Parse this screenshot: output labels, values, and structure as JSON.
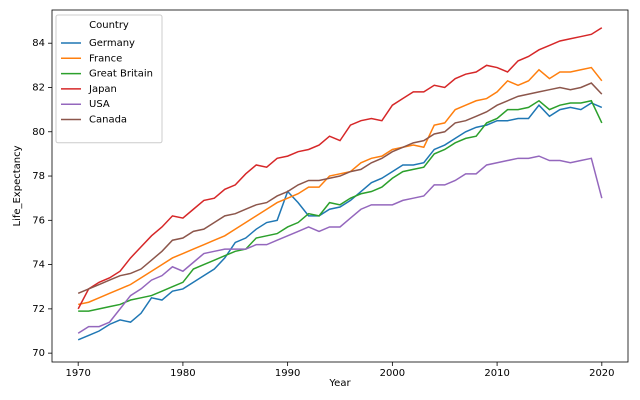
{
  "chart_data": {
    "type": "line",
    "xlabel": "Year",
    "ylabel": "Life_Expectancy",
    "legend_title": "Country",
    "legend": "upper left",
    "grid": false,
    "x": [
      1970,
      1971,
      1972,
      1973,
      1974,
      1975,
      1976,
      1977,
      1978,
      1979,
      1980,
      1981,
      1982,
      1983,
      1984,
      1985,
      1986,
      1987,
      1988,
      1989,
      1990,
      1991,
      1992,
      1993,
      1994,
      1995,
      1996,
      1997,
      1998,
      1999,
      2000,
      2001,
      2002,
      2003,
      2004,
      2005,
      2006,
      2007,
      2008,
      2009,
      2010,
      2011,
      2012,
      2013,
      2014,
      2015,
      2016,
      2017,
      2018,
      2019,
      2020
    ],
    "xlim": [
      1967.5,
      2022.5
    ],
    "xticks": [
      1970,
      1980,
      1990,
      2000,
      2010,
      2020
    ],
    "ylim": [
      69.6,
      85.5
    ],
    "yticks": [
      70,
      72,
      74,
      76,
      78,
      80,
      82,
      84
    ],
    "series": [
      {
        "name": "Germany",
        "color": "#1f77b4",
        "values": [
          70.6,
          70.8,
          71.0,
          71.3,
          71.5,
          71.4,
          71.8,
          72.5,
          72.4,
          72.8,
          72.9,
          73.2,
          73.5,
          73.8,
          74.3,
          75.0,
          75.2,
          75.6,
          75.9,
          76.0,
          77.3,
          76.8,
          76.2,
          76.2,
          76.5,
          76.6,
          76.9,
          77.3,
          77.7,
          77.9,
          78.2,
          78.5,
          78.5,
          78.6,
          79.2,
          79.4,
          79.7,
          80.0,
          80.2,
          80.3,
          80.5,
          80.5,
          80.6,
          80.6,
          81.2,
          80.7,
          81.0,
          81.1,
          81.0,
          81.3,
          81.1
        ]
      },
      {
        "name": "France",
        "color": "#ff7f0e",
        "values": [
          72.2,
          72.3,
          72.5,
          72.7,
          72.9,
          73.1,
          73.4,
          73.7,
          74.0,
          74.3,
          74.5,
          74.7,
          74.9,
          75.1,
          75.3,
          75.6,
          75.9,
          76.2,
          76.5,
          76.8,
          77.0,
          77.2,
          77.5,
          77.5,
          78.0,
          78.1,
          78.2,
          78.6,
          78.8,
          78.9,
          79.2,
          79.3,
          79.4,
          79.3,
          80.3,
          80.4,
          81.0,
          81.2,
          81.4,
          81.5,
          81.8,
          82.3,
          82.1,
          82.3,
          82.8,
          82.4,
          82.7,
          82.7,
          82.8,
          82.9,
          82.3
        ]
      },
      {
        "name": "Great Britain",
        "color": "#2ca02c",
        "values": [
          71.9,
          71.9,
          72.0,
          72.1,
          72.2,
          72.4,
          72.5,
          72.6,
          72.8,
          73.0,
          73.2,
          73.8,
          74.0,
          74.2,
          74.4,
          74.6,
          74.7,
          75.2,
          75.3,
          75.4,
          75.7,
          75.9,
          76.3,
          76.2,
          76.8,
          76.7,
          77.0,
          77.2,
          77.3,
          77.5,
          77.9,
          78.2,
          78.3,
          78.4,
          79.0,
          79.2,
          79.5,
          79.7,
          79.8,
          80.4,
          80.6,
          81.0,
          81.0,
          81.1,
          81.4,
          81.0,
          81.2,
          81.3,
          81.3,
          81.4,
          80.4
        ]
      },
      {
        "name": "Japan",
        "color": "#d62728",
        "values": [
          72.0,
          72.9,
          73.2,
          73.4,
          73.7,
          74.3,
          74.8,
          75.3,
          75.7,
          76.2,
          76.1,
          76.5,
          76.9,
          77.0,
          77.4,
          77.6,
          78.1,
          78.5,
          78.4,
          78.8,
          78.9,
          79.1,
          79.2,
          79.4,
          79.8,
          79.6,
          80.3,
          80.5,
          80.6,
          80.5,
          81.2,
          81.5,
          81.8,
          81.8,
          82.1,
          82.0,
          82.4,
          82.6,
          82.7,
          83.0,
          82.9,
          82.7,
          83.2,
          83.4,
          83.7,
          83.9,
          84.1,
          84.2,
          84.3,
          84.4,
          84.7
        ]
      },
      {
        "name": "USA",
        "color": "#9467bd",
        "values": [
          70.9,
          71.2,
          71.2,
          71.4,
          72.0,
          72.6,
          72.9,
          73.3,
          73.5,
          73.9,
          73.7,
          74.1,
          74.5,
          74.6,
          74.7,
          74.7,
          74.7,
          74.9,
          74.9,
          75.1,
          75.3,
          75.5,
          75.7,
          75.5,
          75.7,
          75.7,
          76.1,
          76.5,
          76.7,
          76.7,
          76.7,
          76.9,
          77.0,
          77.1,
          77.6,
          77.6,
          77.8,
          78.1,
          78.1,
          78.5,
          78.6,
          78.7,
          78.8,
          78.8,
          78.9,
          78.7,
          78.7,
          78.6,
          78.7,
          78.8,
          77.0
        ]
      },
      {
        "name": "Canada",
        "color": "#8c564b",
        "values": [
          72.7,
          72.9,
          73.1,
          73.3,
          73.5,
          73.6,
          73.8,
          74.2,
          74.6,
          75.1,
          75.2,
          75.5,
          75.6,
          75.9,
          76.2,
          76.3,
          76.5,
          76.7,
          76.8,
          77.1,
          77.3,
          77.6,
          77.8,
          77.8,
          77.9,
          78.0,
          78.2,
          78.3,
          78.6,
          78.8,
          79.1,
          79.3,
          79.5,
          79.6,
          79.9,
          80.0,
          80.4,
          80.5,
          80.7,
          80.9,
          81.2,
          81.4,
          81.6,
          81.7,
          81.8,
          81.9,
          82.0,
          81.9,
          82.0,
          82.2,
          81.7
        ]
      }
    ]
  }
}
